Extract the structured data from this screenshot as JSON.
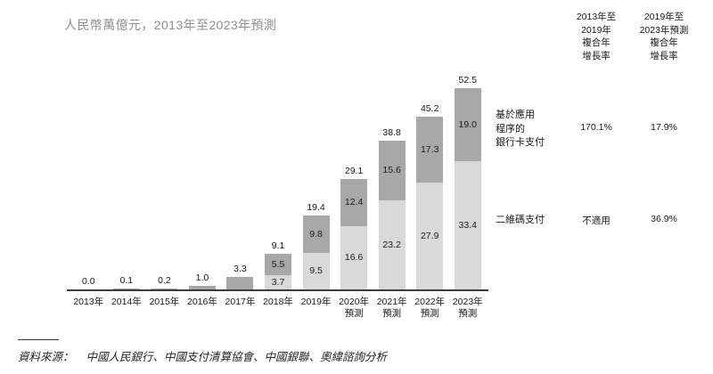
{
  "title": "人民幣萬億元，2013年至2023年預測",
  "chart_data": {
    "type": "bar",
    "stacked": true,
    "unit_note": "人民幣萬億元",
    "categories": [
      "2013年",
      "2014年",
      "2015年",
      "2016年",
      "2017年",
      "2018年",
      "2019年",
      "2020年\n預測",
      "2021年\n預測",
      "2022年\n預測",
      "2023年\n預測"
    ],
    "series": [
      {
        "name": "二維碼支付",
        "color": "#d9d9d9",
        "values": [
          0,
          0,
          0,
          0,
          0,
          3.7,
          9.5,
          16.6,
          23.2,
          27.9,
          33.4
        ]
      },
      {
        "name": "基於應用程序的銀行卡支付",
        "color": "#a8a8a8",
        "values": [
          0,
          0.1,
          0.2,
          1.0,
          3.3,
          5.5,
          9.8,
          12.4,
          15.6,
          17.3,
          19.0
        ]
      }
    ],
    "totals": [
      "0.0",
      "0.1",
      "0.2",
      "1.0",
      "3.3",
      "9.1",
      "19.4",
      "29.1",
      "38.8",
      "45.2",
      "52.5"
    ],
    "segment_labels": {
      "qr": [
        null,
        null,
        null,
        null,
        null,
        "3.7",
        "9.5",
        "16.6",
        "23.2",
        "27.9",
        "33.4"
      ],
      "card": [
        null,
        null,
        null,
        null,
        null,
        "5.5",
        "9.8",
        "12.4",
        "15.6",
        "17.3",
        "19.0"
      ]
    },
    "ylim": [
      0,
      55
    ],
    "legend_position": "right"
  },
  "cagr_table": {
    "col1_header": "2013年至\n2019年\n複合年\n增長率",
    "col2_header": "2019年至\n2023年預測\n複合年\n增長率",
    "rows": [
      {
        "label": "基於應用\n程序的\n銀行卡支付",
        "col1": "170.1%",
        "col2": "17.9%"
      },
      {
        "label": "二維碼支付",
        "col1": "不適用",
        "col2": "36.9%"
      }
    ]
  },
  "source": {
    "prefix": "資料來源：",
    "text": "中國人民銀行、中國支付清算協會、中國銀聯、奧緯諮詢分析"
  }
}
